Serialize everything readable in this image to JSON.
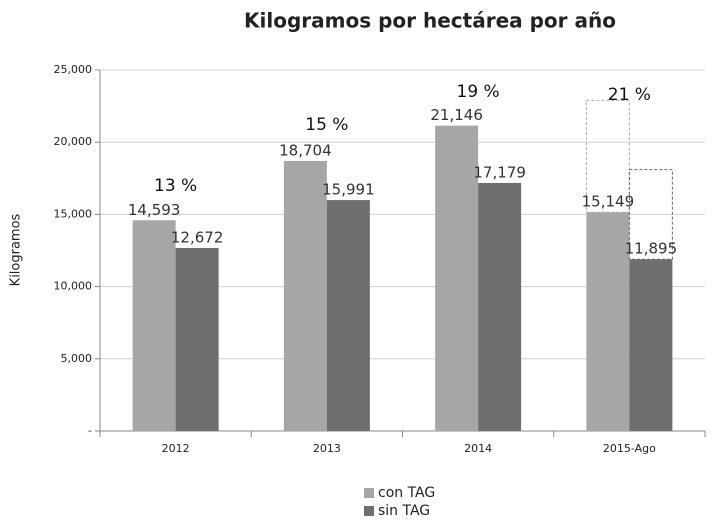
{
  "chart_data": {
    "type": "bar",
    "title": "Kilogramos por hectárea por año",
    "y_label": "Kilogramos",
    "categories": [
      "2012",
      "2013",
      "2014",
      "2015-Ago"
    ],
    "series": [
      {
        "name": "con TAG",
        "color": "#a6a6a6",
        "values": [
          14593,
          18704,
          21146,
          15149
        ],
        "value_labels": [
          "14,593",
          "18,704",
          "21,146",
          "15,149"
        ],
        "projected_values": [
          null,
          null,
          null,
          22900
        ]
      },
      {
        "name": "sin TAG",
        "color": "#6e6e6e",
        "values": [
          12672,
          15991,
          17179,
          11895
        ],
        "value_labels": [
          "12,672",
          "15,991",
          "17,179",
          "11,895"
        ],
        "projected_values": [
          null,
          null,
          null,
          18100
        ]
      }
    ],
    "annotations": [
      "13 %",
      "15 %",
      "19 %",
      "21 %"
    ],
    "ylim": [
      0,
      25000
    ],
    "yticks": [
      {
        "value": 0,
        "label": "-"
      },
      {
        "value": 5000,
        "label": "5,000"
      },
      {
        "value": 10000,
        "label": "10,000"
      },
      {
        "value": 15000,
        "label": "15,000"
      },
      {
        "value": 20000,
        "label": "20,000"
      },
      {
        "value": 25000,
        "label": "25,000"
      }
    ],
    "grid": true,
    "legend": "bottom"
  }
}
